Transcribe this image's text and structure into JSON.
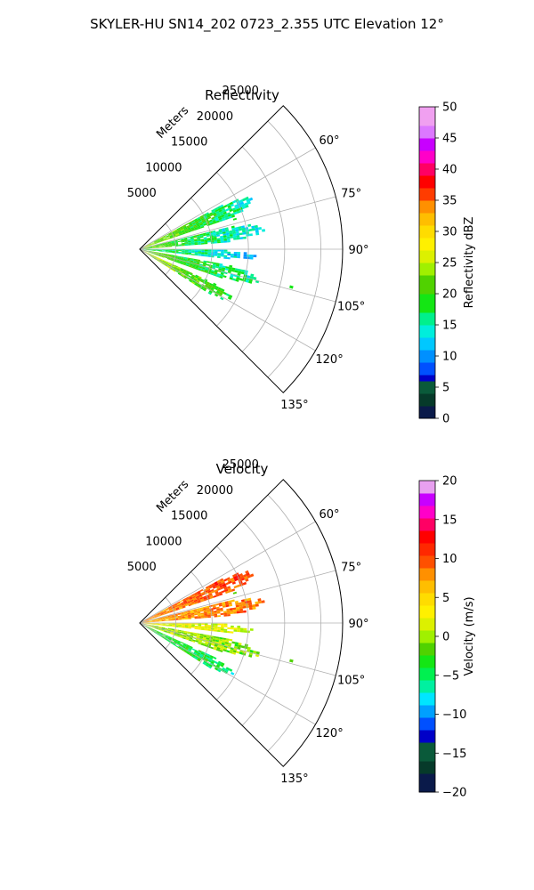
{
  "figure": {
    "title": "SKYLER-HU  SN14_202  0723_2.355 UTC Elevation 12°"
  },
  "chart_data": [
    {
      "type": "heatmap",
      "projection": "polar-sector",
      "title": "Reflectivity",
      "range_axis_label": "Meters",
      "range_ticks": [
        5000,
        10000,
        15000,
        20000,
        25000
      ],
      "range_tick_labels": [
        "5000",
        "10000",
        "15000",
        "20000",
        "25000"
      ],
      "range_max": 28000,
      "azimuth_range_deg": [
        45,
        135
      ],
      "azimuth_ticks_deg": [
        60,
        75,
        90,
        105,
        120,
        135
      ],
      "azimuth_tick_labels": [
        "60°",
        "75°",
        "90°",
        "105°",
        "120°",
        "135°"
      ],
      "grid": true,
      "colorbar": {
        "label": "Reflectivity dBZ",
        "range": [
          0,
          50
        ],
        "ticks": [
          0,
          5,
          10,
          15,
          20,
          25,
          30,
          35,
          40,
          45,
          50
        ],
        "tick_labels": [
          "0",
          "5",
          "10",
          "15",
          "20",
          "25",
          "30",
          "35",
          "40",
          "45",
          "50"
        ]
      },
      "echo_lobes": [
        {
          "azimuth_deg": 66,
          "width_deg": 9,
          "range_max": 17000,
          "value_near": 24,
          "value_far": 14
        },
        {
          "azimuth_deg": 80,
          "width_deg": 8,
          "range_max": 17500,
          "value_near": 22,
          "value_far": 12
        },
        {
          "azimuth_deg": 93,
          "width_deg": 5,
          "range_max": 16000,
          "value_near": 18,
          "value_far": 12
        },
        {
          "azimuth_deg": 104,
          "width_deg": 8,
          "range_max": 17000,
          "value_near": 22,
          "value_far": 15
        },
        {
          "azimuth_deg": 118,
          "width_deg": 8,
          "range_max": 14500,
          "value_near": 25,
          "value_far": 18
        }
      ]
    },
    {
      "type": "heatmap",
      "projection": "polar-sector",
      "title": "Velocity",
      "range_axis_label": "Meters",
      "range_ticks": [
        5000,
        10000,
        15000,
        20000,
        25000
      ],
      "range_tick_labels": [
        "5000",
        "10000",
        "15000",
        "20000",
        "25000"
      ],
      "range_max": 28000,
      "azimuth_range_deg": [
        45,
        135
      ],
      "azimuth_ticks_deg": [
        60,
        75,
        90,
        105,
        120,
        135
      ],
      "azimuth_tick_labels": [
        "60°",
        "75°",
        "90°",
        "105°",
        "120°",
        "135°"
      ],
      "grid": true,
      "colorbar": {
        "label": "Velocity (m/s)",
        "range": [
          -20,
          20
        ],
        "ticks": [
          -20,
          -15,
          -10,
          -5,
          0,
          5,
          10,
          15,
          20
        ],
        "tick_labels": [
          "−20",
          "−15",
          "−10",
          "−5",
          "0",
          "5",
          "10",
          "15",
          "20"
        ]
      },
      "echo_lobes": [
        {
          "azimuth_deg": 66,
          "width_deg": 9,
          "range_max": 17000,
          "value_near": 8,
          "value_far": 11
        },
        {
          "azimuth_deg": 80,
          "width_deg": 8,
          "range_max": 17500,
          "value_near": 7,
          "value_far": 9
        },
        {
          "azimuth_deg": 93,
          "width_deg": 5,
          "range_max": 16000,
          "value_near": 3,
          "value_far": 1
        },
        {
          "azimuth_deg": 104,
          "width_deg": 8,
          "range_max": 17000,
          "value_near": 1,
          "value_far": -1
        },
        {
          "azimuth_deg": 118,
          "width_deg": 8,
          "range_max": 14500,
          "value_near": -3,
          "value_far": -5
        }
      ]
    }
  ]
}
